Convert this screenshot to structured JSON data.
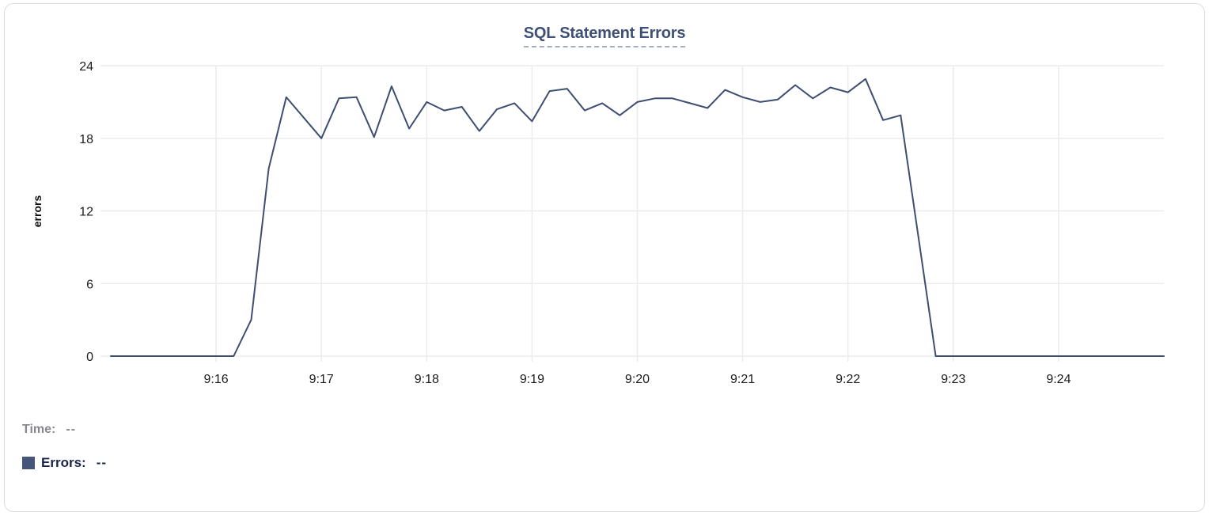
{
  "panel": {
    "title": "SQL Statement Errors"
  },
  "tooltip": {
    "time_label": "Time:",
    "time_value": "--",
    "series_label": "Errors:",
    "series_value": "--",
    "swatch_color": "#46567a"
  },
  "colors": {
    "title": "#3e5075",
    "title_underline": "#a3aec4",
    "card_border": "#dcdcdc",
    "tick_text": "#1c1c1e",
    "legend_time": "#87898d",
    "legend_errors": "#19244d",
    "swatch": "#46567a"
  },
  "chart_data": {
    "type": "line",
    "title": "SQL Statement Errors",
    "xlabel": "",
    "ylabel": "errors",
    "ylim": [
      0,
      24
    ],
    "y_ticks": [
      0,
      6,
      12,
      18,
      24
    ],
    "x_ticks": [
      "9:16",
      "9:17",
      "9:18",
      "9:19",
      "9:20",
      "9:21",
      "9:22",
      "9:23",
      "9:24"
    ],
    "x_range": [
      "9:15:00",
      "9:25:00"
    ],
    "grid": true,
    "legend_position": "bottom-left",
    "line_color": "#3e4e72",
    "grid_color": "#ececec",
    "series": [
      {
        "name": "Errors",
        "points": [
          [
            "9:15:00",
            0
          ],
          [
            "9:15:10",
            0
          ],
          [
            "9:15:20",
            0
          ],
          [
            "9:15:30",
            0
          ],
          [
            "9:15:40",
            0
          ],
          [
            "9:15:50",
            0
          ],
          [
            "9:16:00",
            0
          ],
          [
            "9:16:10",
            0
          ],
          [
            "9:16:20",
            3
          ],
          [
            "9:16:30",
            15.5
          ],
          [
            "9:16:40",
            21.4
          ],
          [
            "9:16:50",
            19.7
          ],
          [
            "9:17:00",
            18
          ],
          [
            "9:17:10",
            21.3
          ],
          [
            "9:17:20",
            21.4
          ],
          [
            "9:17:30",
            18.1
          ],
          [
            "9:17:40",
            22.3
          ],
          [
            "9:17:50",
            18.8
          ],
          [
            "9:18:00",
            21
          ],
          [
            "9:18:10",
            20.3
          ],
          [
            "9:18:20",
            20.6
          ],
          [
            "9:18:30",
            18.6
          ],
          [
            "9:18:40",
            20.4
          ],
          [
            "9:18:50",
            20.9
          ],
          [
            "9:19:00",
            19.4
          ],
          [
            "9:19:10",
            21.9
          ],
          [
            "9:19:20",
            22.1
          ],
          [
            "9:19:30",
            20.3
          ],
          [
            "9:19:40",
            20.9
          ],
          [
            "9:19:50",
            19.9
          ],
          [
            "9:20:00",
            21
          ],
          [
            "9:20:10",
            21.3
          ],
          [
            "9:20:20",
            21.3
          ],
          [
            "9:20:30",
            20.9
          ],
          [
            "9:20:40",
            20.5
          ],
          [
            "9:20:50",
            22
          ],
          [
            "9:21:00",
            21.4
          ],
          [
            "9:21:10",
            21
          ],
          [
            "9:21:20",
            21.2
          ],
          [
            "9:21:30",
            22.4
          ],
          [
            "9:21:40",
            21.3
          ],
          [
            "9:21:50",
            22.2
          ],
          [
            "9:22:00",
            21.8
          ],
          [
            "9:22:10",
            22.9
          ],
          [
            "9:22:20",
            19.5
          ],
          [
            "9:22:30",
            19.9
          ],
          [
            "9:22:40",
            10
          ],
          [
            "9:22:50",
            0
          ],
          [
            "9:23:00",
            0
          ],
          [
            "9:23:10",
            0
          ],
          [
            "9:23:20",
            0
          ],
          [
            "9:23:30",
            0
          ],
          [
            "9:23:40",
            0
          ],
          [
            "9:23:50",
            0
          ],
          [
            "9:24:00",
            0
          ],
          [
            "9:24:10",
            0
          ],
          [
            "9:24:20",
            0
          ],
          [
            "9:24:30",
            0
          ],
          [
            "9:24:40",
            0
          ],
          [
            "9:24:50",
            0
          ],
          [
            "9:25:00",
            0
          ]
        ]
      }
    ]
  }
}
